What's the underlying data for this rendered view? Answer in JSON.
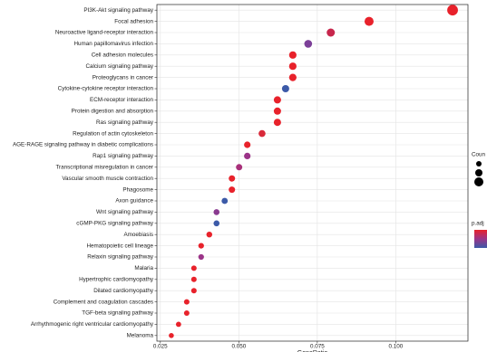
{
  "chart_data": {
    "type": "dot",
    "categories": [
      "PI3K-Akt signaling pathway",
      "Focal adhesion",
      "Neuroactive ligand-receptor interaction",
      "Human papillomavirus infection",
      "Cell adhesion molecules",
      "Calcium signaling pathway",
      "Proteoglycans in cancer",
      "Cytokine-cytokine receptor interaction",
      "ECM-receptor interaction",
      "Protein digestion and absorption",
      "Ras signaling pathway",
      "Regulation of actin cytoskeleton",
      "AGE-RAGE signaling pathway in diabetic complications",
      "Rap1 signaling pathway",
      "Transcriptional misregulation in cancer",
      "Vascular smooth muscle contraction",
      "Phagosome",
      "Axon guidance",
      "Wnt signaling pathway",
      "cGMP-PKG signaling pathway",
      "Amoebiasis",
      "Hematopoietic cell lineage",
      "Relaxin signaling pathway",
      "Malaria",
      "Hypertrophic cardiomyopathy",
      "Dilated cardiomyopathy",
      "Complement and coagulation cascades",
      "TGF-beta signaling pathway",
      "Arrhythmogenic right ventricular cardiomyopathy",
      "Melanoma"
    ],
    "values": [
      0.1181,
      0.0915,
      0.0793,
      0.0721,
      0.0672,
      0.0672,
      0.0672,
      0.0649,
      0.0623,
      0.0623,
      0.0623,
      0.0574,
      0.0527,
      0.0527,
      0.0501,
      0.0478,
      0.0478,
      0.0455,
      0.0429,
      0.0429,
      0.0406,
      0.038,
      0.038,
      0.0357,
      0.0357,
      0.0357,
      0.0334,
      0.0334,
      0.0308,
      0.0285
    ],
    "sizes": [
      41,
      32,
      27,
      25,
      23,
      23,
      23,
      22,
      22,
      22,
      22,
      20,
      18,
      18,
      17,
      17,
      17,
      16,
      15,
      15,
      14,
      13,
      13,
      12,
      12,
      12,
      12,
      12,
      11,
      10
    ],
    "colors": [
      "#e8222b",
      "#e8222b",
      "#c7264c",
      "#7c3f98",
      "#e8222b",
      "#e8222b",
      "#e8222b",
      "#3c5aa8",
      "#e8222b",
      "#e8222b",
      "#e8222b",
      "#d92a3a",
      "#e8222b",
      "#9b3488",
      "#a8307a",
      "#e8222b",
      "#e8222b",
      "#3c5aa8",
      "#8a3a90",
      "#3c5aa8",
      "#e8222b",
      "#e8222b",
      "#9b3488",
      "#e8222b",
      "#e8222b",
      "#e8222b",
      "#e8222b",
      "#e8222b",
      "#e8222b",
      "#e8222b"
    ],
    "xlim": [
      0.0239,
      0.123
    ],
    "xticks": [
      {
        "value": 0.025,
        "label": "0.025"
      },
      {
        "value": 0.05,
        "label": "0.050"
      },
      {
        "value": 0.075,
        "label": "0.075"
      },
      {
        "value": 0.1,
        "label": "0.100"
      }
    ],
    "x_label": "GeneRatio",
    "size_legend_title": "Coun",
    "color_legend_title": "p.adj",
    "grid": true
  }
}
